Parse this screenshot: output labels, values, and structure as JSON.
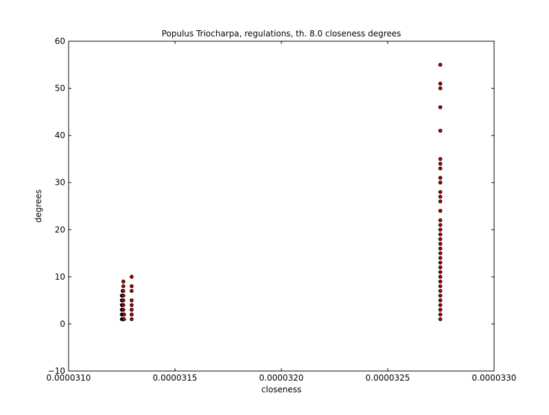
{
  "chart_data": {
    "type": "scatter",
    "title": "Populus Triocharpa, regulations, th. 8.0 closeness degrees",
    "xlabel": "closeness",
    "ylabel": "degrees",
    "xlim": [
      3.1e-05,
      3.3e-05
    ],
    "ylim": [
      -10,
      60
    ],
    "x_ticks": [
      3.1e-05,
      3.15e-05,
      3.2e-05,
      3.25e-05,
      3.3e-05
    ],
    "x_tick_labels": [
      "0.0000310",
      "0.0000315",
      "0.0000320",
      "0.0000325",
      "0.0000330"
    ],
    "y_ticks": [
      -10,
      0,
      10,
      20,
      30,
      40,
      50,
      60
    ],
    "y_tick_labels": [
      "−10",
      "0",
      "10",
      "20",
      "30",
      "40",
      "50",
      "60"
    ],
    "grid": false,
    "marker_color": "#cc0000",
    "marker_edge_color": "#000000",
    "series": [
      {
        "x": [
          3.125e-05,
          3.125e-05,
          3.125e-05,
          3.125e-05,
          3.125e-05,
          3.125e-05,
          3.12538e-05,
          3.12538e-05,
          3.12538e-05,
          3.12538e-05,
          3.12538e-05,
          3.12538e-05,
          3.12538e-05,
          3.12572e-05,
          3.12572e-05,
          3.12572e-05,
          3.12572e-05,
          3.12572e-05,
          3.12572e-05,
          3.12572e-05,
          3.12572e-05,
          3.12572e-05,
          3.12605e-05,
          3.12605e-05,
          3.12963e-05,
          3.12963e-05,
          3.12963e-05,
          3.12963e-05,
          3.12963e-05,
          3.12963e-05,
          3.12963e-05,
          3.12963e-05
        ],
        "y": [
          1,
          2,
          3,
          4,
          5,
          6,
          1,
          2,
          3,
          4,
          5,
          6,
          7,
          1,
          2,
          3,
          4,
          5,
          6,
          7,
          8,
          9,
          1,
          2,
          1,
          2,
          3,
          4,
          5,
          7,
          8,
          10
        ]
      },
      {
        "x": [
          3.27472e-05,
          3.27472e-05,
          3.27472e-05,
          3.27472e-05,
          3.27472e-05,
          3.27472e-05,
          3.27472e-05,
          3.27472e-05,
          3.27472e-05,
          3.27472e-05,
          3.27472e-05,
          3.27472e-05,
          3.27472e-05,
          3.27472e-05,
          3.27472e-05,
          3.27472e-05,
          3.27472e-05,
          3.27472e-05,
          3.27472e-05,
          3.27472e-05,
          3.27472e-05,
          3.27472e-05,
          3.27472e-05,
          3.27472e-05,
          3.27472e-05,
          3.27472e-05,
          3.27472e-05,
          3.27472e-05,
          3.27472e-05,
          3.27472e-05,
          3.27472e-05,
          3.27472e-05,
          3.27472e-05,
          3.27472e-05
        ],
        "y": [
          1,
          2,
          3,
          4,
          5,
          6,
          7,
          8,
          9,
          10,
          11,
          12,
          13,
          14,
          15,
          16,
          17,
          18,
          19,
          20,
          21,
          22,
          24,
          26,
          27,
          28,
          30,
          31,
          33,
          34,
          35,
          41,
          46,
          50
        ]
      },
      {
        "x": [
          3.27472e-05,
          3.27472e-05
        ],
        "y": [
          51,
          55
        ]
      }
    ]
  }
}
